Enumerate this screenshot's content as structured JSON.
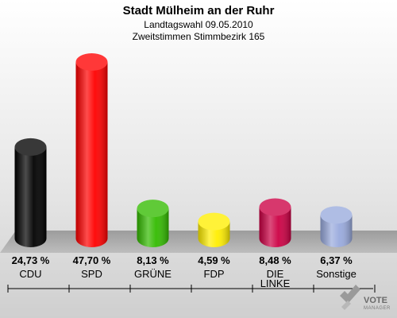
{
  "chart_data": {
    "type": "bar",
    "title": "Stadt Mülheim an der Ruhr",
    "subtitle_1": "Landtagswahl 09.05.2010",
    "subtitle_2": "Zweitstimmen Stimmbezirk 165",
    "categories": [
      "CDU",
      "SPD",
      "GRÜNE",
      "FDP",
      "DIE LINKE",
      "Sonstige"
    ],
    "category_lines": [
      [
        "CDU"
      ],
      [
        "SPD"
      ],
      [
        "GRÜNE"
      ],
      [
        "FDP"
      ],
      [
        "DIE",
        "LINKE"
      ],
      [
        "Sonstige"
      ]
    ],
    "values": [
      24.73,
      47.7,
      8.13,
      4.59,
      8.48,
      6.37
    ],
    "value_labels": [
      "24,73 %",
      "47,70 %",
      "8,13 %",
      "4,59 %",
      "8,48 %",
      "6,37 %"
    ],
    "colors": [
      "#000000",
      "#ff0000",
      "#33bb00",
      "#ffee00",
      "#cc0044",
      "#99aadd"
    ],
    "ylim": [
      0,
      50
    ],
    "grid": false,
    "legend": "none"
  },
  "brand": {
    "name": "VOTE",
    "tagline": "MANAGER",
    "logo_icon": "vote-manager-checkmark-icon"
  }
}
